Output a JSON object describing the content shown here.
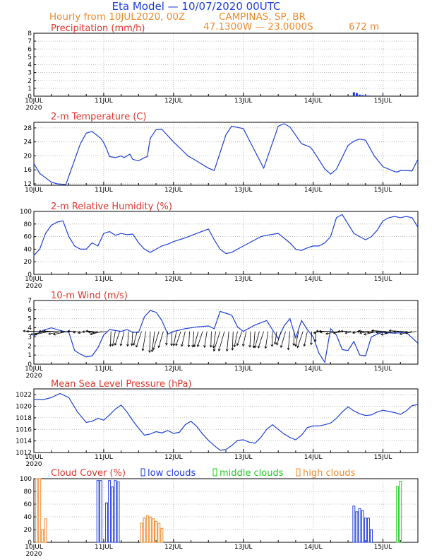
{
  "header": {
    "title": "Eta Model — 10/07/2020 00UTC",
    "subtitle": "Hourly from 10JUL2020, 00Z",
    "location": "CAMPINAS, SP, BR",
    "coords": "47.1300W — 23.0000S",
    "elevation": "672  m"
  },
  "colors": {
    "title": "#1f3fd8",
    "subtitle": "#f08a2c",
    "panel_title": "#e0362b",
    "series": "#1f3fd8",
    "low_clouds": "#1f3fd8",
    "middle_clouds": "#22cc22",
    "high_clouds": "#f08a2c",
    "grid": "#aaaaaa"
  },
  "chart_data": [
    {
      "type": "bar",
      "title": "Precipitation (mm/h)",
      "xlim": [
        0,
        132
      ],
      "ylim": [
        0,
        8
      ],
      "yticks": [
        0,
        1,
        2,
        3,
        4,
        5,
        6,
        7,
        8
      ],
      "xtick_labels": [
        "10JUL",
        "11JUL",
        "12JUL",
        "13JUL",
        "14JUL",
        "15JUL"
      ],
      "year_label": "2020",
      "grid": true,
      "bars": [
        {
          "x": 110,
          "y": 0.5
        },
        {
          "x": 111,
          "y": 0.4
        },
        {
          "x": 112,
          "y": 0.2
        },
        {
          "x": 113,
          "y": 0.15
        },
        {
          "x": 114,
          "y": 0.1
        },
        {
          "x": 115,
          "y": 0.08
        }
      ]
    },
    {
      "type": "line",
      "title": "2-m Temperature (C)",
      "xlim": [
        0,
        132
      ],
      "ylim": [
        11.6,
        29.6
      ],
      "yticks": [
        12,
        16,
        20,
        24,
        28
      ],
      "xtick_labels": [
        "10JUL",
        "11JUL",
        "12JUL",
        "13JUL",
        "14JUL",
        "15JUL"
      ],
      "year_label": "",
      "grid": true,
      "x": [
        0,
        2,
        6,
        8,
        11,
        16,
        18,
        20,
        23,
        24,
        25,
        26,
        28,
        30,
        31,
        32,
        33,
        34,
        36,
        38,
        39,
        40,
        42,
        44,
        48,
        53,
        55,
        60,
        62,
        66,
        68,
        72,
        77,
        79,
        84,
        86,
        88,
        92,
        95,
        96,
        100,
        102,
        104,
        108,
        110,
        112,
        114,
        117,
        120,
        124,
        125,
        126,
        127,
        130,
        132
      ],
      "y": [
        17.8,
        15,
        12.5,
        12,
        11.8,
        23.5,
        26.5,
        27,
        25,
        23.8,
        22,
        19.8,
        19.5,
        20,
        19.5,
        20,
        20.5,
        19,
        18.6,
        19.5,
        19.8,
        25,
        27.5,
        27.6,
        24,
        20,
        19,
        16.5,
        15.8,
        26,
        28.5,
        27.8,
        19.7,
        16.5,
        28.5,
        29.2,
        28.3,
        23.5,
        22.5,
        21.5,
        16.3,
        14.8,
        16.2,
        23,
        24.2,
        24.8,
        24.5,
        20,
        16.9,
        15.5,
        15.4,
        15.8,
        15.8,
        15.7,
        19
      ]
    },
    {
      "type": "line",
      "title": "2-m Relative Humidity (%)",
      "xlim": [
        0,
        132
      ],
      "ylim": [
        0,
        100
      ],
      "yticks": [
        0,
        20,
        40,
        60,
        80,
        100
      ],
      "xtick_labels": [
        "10JUL",
        "11JUL",
        "12JUL",
        "13JUL",
        "14JUL",
        "15JUL"
      ],
      "year_label": "2020",
      "grid": true,
      "x": [
        0,
        2,
        4,
        6,
        8,
        10,
        12,
        14,
        16,
        18,
        20,
        22,
        24,
        26,
        28,
        30,
        32,
        34,
        36,
        38,
        40,
        42,
        44,
        46,
        48,
        52,
        56,
        60,
        62,
        64,
        66,
        68,
        70,
        72,
        74,
        76,
        78,
        80,
        84,
        88,
        90,
        92,
        94,
        96,
        98,
        100,
        102,
        104,
        106,
        108,
        110,
        112,
        114,
        116,
        118,
        120,
        122,
        124,
        126,
        128,
        130,
        132
      ],
      "y": [
        30,
        40,
        65,
        78,
        83,
        85,
        60,
        45,
        40,
        40,
        50,
        45,
        65,
        68,
        62,
        65,
        63,
        64,
        50,
        40,
        35,
        40,
        45,
        48,
        52,
        58,
        65,
        72,
        55,
        40,
        33,
        35,
        40,
        45,
        50,
        55,
        60,
        62,
        65,
        50,
        40,
        38,
        42,
        45,
        45,
        50,
        60,
        90,
        95,
        80,
        65,
        60,
        55,
        60,
        70,
        85,
        90,
        92,
        90,
        92,
        90,
        75
      ]
    },
    {
      "type": "line",
      "title": "10-m Wind (m/s)",
      "xlim": [
        0,
        132
      ],
      "ylim": [
        0,
        7
      ],
      "yticks": [
        0,
        1,
        2,
        3,
        4,
        5,
        6,
        7
      ],
      "xtick_labels": [
        "10JUL",
        "11JUL",
        "12JUL",
        "13JUL",
        "14JUL",
        "15JUL"
      ],
      "year_label": "2020",
      "grid": true,
      "x": [
        0,
        3,
        6,
        9,
        12,
        14,
        16,
        18,
        20,
        22,
        24,
        26,
        28,
        30,
        32,
        34,
        36,
        38,
        40,
        42,
        44,
        46,
        48,
        52,
        56,
        60,
        62,
        64,
        66,
        68,
        70,
        72,
        76,
        80,
        84,
        86,
        88,
        90,
        92,
        94,
        96,
        98,
        100,
        102,
        104,
        106,
        108,
        110,
        112,
        114,
        116,
        118,
        120,
        124,
        128,
        132
      ],
      "y": [
        3.1,
        3.7,
        4.0,
        3.7,
        3.5,
        1.5,
        1.1,
        0.8,
        0.9,
        1.8,
        3.2,
        3.8,
        3.7,
        3.6,
        3.8,
        3.5,
        3.5,
        5.2,
        5.9,
        5.7,
        4.8,
        3.3,
        3.6,
        3.9,
        4.1,
        4.2,
        3.9,
        5.8,
        5.6,
        5.4,
        4.1,
        3.6,
        4.3,
        4.8,
        2.8,
        4.2,
        5.0,
        2.9,
        4.8,
        3.8,
        3.0,
        1.2,
        0.2,
        3.9,
        3.2,
        1.6,
        1.5,
        2.5,
        1.0,
        0.9,
        3.0,
        3.3,
        3.5,
        3.4,
        3.5,
        2.3
      ],
      "vector_baseline": 3.6
    },
    {
      "type": "line",
      "title": "Mean Sea Level Pressure (hPa)",
      "xlim": [
        0,
        132
      ],
      "ylim": [
        1012,
        1023
      ],
      "yticks": [
        1012,
        1014,
        1016,
        1018,
        1020,
        1022
      ],
      "xtick_labels": [
        "10JUL",
        "11JUL",
        "12JUL",
        "13JUL",
        "14JUL",
        "15JUL"
      ],
      "year_label": "2020",
      "grid": true,
      "x": [
        0,
        3,
        6,
        9,
        12,
        15,
        18,
        20,
        22,
        24,
        26,
        28,
        30,
        32,
        34,
        36,
        38,
        40,
        42,
        44,
        46,
        48,
        50,
        52,
        54,
        56,
        58,
        60,
        62,
        64,
        66,
        68,
        70,
        72,
        74,
        76,
        78,
        80,
        82,
        84,
        86,
        88,
        90,
        92,
        94,
        96,
        98,
        100,
        102,
        104,
        106,
        108,
        110,
        112,
        114,
        116,
        118,
        120,
        122,
        124,
        126,
        128,
        130,
        132
      ],
      "y": [
        1021.2,
        1021.1,
        1021.5,
        1022.2,
        1021.5,
        1019,
        1017.2,
        1017.4,
        1017.9,
        1017.6,
        1018.5,
        1019.5,
        1020.2,
        1019,
        1017.5,
        1016.2,
        1015,
        1015.2,
        1015.6,
        1015.4,
        1015.8,
        1015.3,
        1015.5,
        1016.8,
        1017.4,
        1016.5,
        1015.2,
        1014.1,
        1013.2,
        1012.4,
        1012.5,
        1013.2,
        1014.1,
        1014.2,
        1013.8,
        1013.6,
        1014.6,
        1016,
        1016.8,
        1016,
        1015.2,
        1014.6,
        1014.2,
        1015,
        1016.3,
        1016.6,
        1016.6,
        1016.8,
        1017.1,
        1017.9,
        1019,
        1019.9,
        1019.2,
        1018.7,
        1018.4,
        1018.5,
        1019,
        1019.3,
        1019.1,
        1018.9,
        1018.6,
        1019.2,
        1020.1,
        1020.3
      ]
    },
    {
      "type": "bar",
      "title": "Cloud Cover (%)",
      "xlim": [
        0,
        132
      ],
      "ylim": [
        0,
        100
      ],
      "yticks": [
        0,
        20,
        40,
        60,
        80,
        100
      ],
      "xtick_labels": [
        "10JUL",
        "11JUL",
        "12JUL",
        "13JUL",
        "14JUL",
        "15JUL"
      ],
      "year_label": "2020",
      "grid": true,
      "legend": {
        "low": "low clouds",
        "middle": "middle clouds",
        "high": "high clouds"
      },
      "high_clouds": {
        "x": [
          1,
          2,
          3,
          4,
          37,
          38,
          39,
          40,
          41,
          42,
          43,
          44
        ],
        "y": [
          100,
          100,
          20,
          37,
          30,
          38,
          42,
          40,
          37,
          33,
          30,
          22
        ]
      },
      "low_clouds": {
        "x": [
          22,
          23,
          25,
          26,
          27,
          28,
          29,
          110,
          111,
          112,
          113,
          114,
          115,
          116
        ],
        "y": [
          97,
          97,
          62,
          97,
          87,
          97,
          95,
          57,
          48,
          53,
          50,
          38,
          38,
          20
        ]
      },
      "middle_clouds": {
        "x": [
          125,
          126
        ],
        "y": [
          88,
          96
        ]
      }
    }
  ]
}
